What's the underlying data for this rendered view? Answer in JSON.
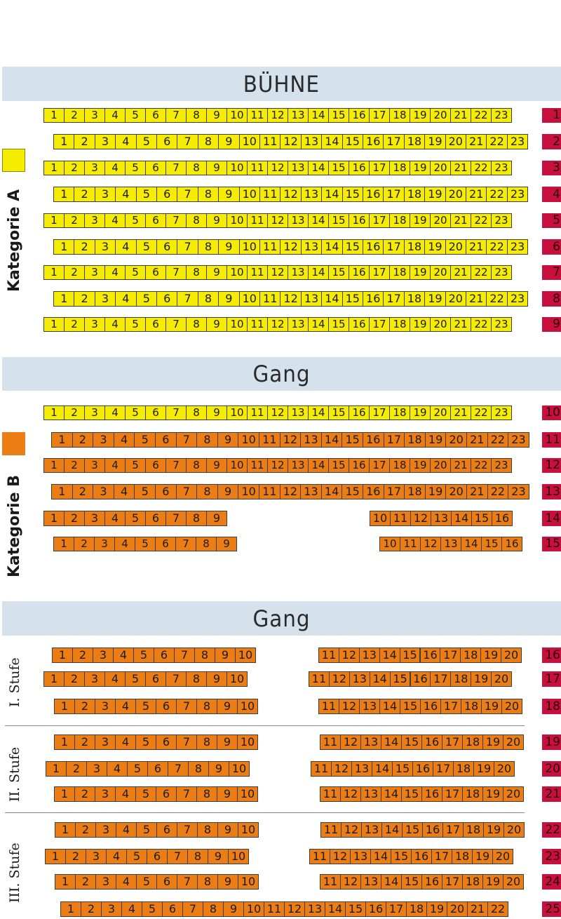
{
  "headings": {
    "stage": "BÜHNE",
    "aisle_1": "Gang",
    "aisle_2": "Gang"
  },
  "categories": {
    "a": {
      "label": "Kategorie A",
      "color": "#f6ec00"
    },
    "b": {
      "label": "Kategorie B",
      "color": "#ec7d14"
    }
  },
  "tiers": {
    "t1": "I. Stufe",
    "t2": "II. Stufe",
    "t3": "III. Stufe"
  },
  "colors": {
    "stage_band": "#d5e2ec",
    "row_label": "#c8103f"
  },
  "rows": [
    {
      "row": "1",
      "category": "A",
      "seats": [
        "1",
        "2",
        "3",
        "4",
        "5",
        "6",
        "7",
        "8",
        "9",
        "10",
        "11",
        "12",
        "13",
        "14",
        "15",
        "16",
        "17",
        "18",
        "19",
        "20",
        "21",
        "22",
        "23"
      ]
    },
    {
      "row": "2",
      "category": "A",
      "seats": [
        "1",
        "2",
        "3",
        "4",
        "5",
        "6",
        "7",
        "8",
        "9",
        "10",
        "11",
        "12",
        "13",
        "14",
        "15",
        "16",
        "17",
        "18",
        "19",
        "20",
        "21",
        "22",
        "23"
      ]
    },
    {
      "row": "3",
      "category": "A",
      "seats": [
        "1",
        "2",
        "3",
        "4",
        "5",
        "6",
        "7",
        "8",
        "9",
        "10",
        "11",
        "12",
        "13",
        "14",
        "15",
        "16",
        "17",
        "18",
        "19",
        "20",
        "21",
        "22",
        "23"
      ]
    },
    {
      "row": "4",
      "category": "A",
      "seats": [
        "1",
        "2",
        "3",
        "4",
        "5",
        "6",
        "7",
        "8",
        "9",
        "10",
        "11",
        "12",
        "13",
        "14",
        "15",
        "16",
        "17",
        "18",
        "19",
        "20",
        "21",
        "22",
        "23"
      ]
    },
    {
      "row": "5",
      "category": "A",
      "seats": [
        "1",
        "2",
        "3",
        "4",
        "5",
        "6",
        "7",
        "8",
        "9",
        "10",
        "11",
        "12",
        "13",
        "14",
        "15",
        "16",
        "17",
        "18",
        "19",
        "20",
        "21",
        "22",
        "23"
      ]
    },
    {
      "row": "6",
      "category": "A",
      "seats": [
        "1",
        "2",
        "3",
        "4",
        "5",
        "6",
        "7",
        "8",
        "9",
        "10",
        "11",
        "12",
        "13",
        "14",
        "15",
        "16",
        "17",
        "18",
        "19",
        "20",
        "21",
        "22",
        "23"
      ]
    },
    {
      "row": "7",
      "category": "A",
      "seats": [
        "1",
        "2",
        "3",
        "4",
        "5",
        "6",
        "7",
        "8",
        "9",
        "10",
        "11",
        "12",
        "13",
        "14",
        "15",
        "16",
        "17",
        "18",
        "19",
        "20",
        "21",
        "22",
        "23"
      ]
    },
    {
      "row": "8",
      "category": "A",
      "seats": [
        "1",
        "2",
        "3",
        "4",
        "5",
        "6",
        "7",
        "8",
        "9",
        "10",
        "11",
        "12",
        "13",
        "14",
        "15",
        "16",
        "17",
        "18",
        "19",
        "20",
        "21",
        "22",
        "23"
      ]
    },
    {
      "row": "9",
      "category": "A",
      "seats": [
        "1",
        "2",
        "3",
        "4",
        "5",
        "6",
        "7",
        "8",
        "9",
        "10",
        "11",
        "12",
        "13",
        "14",
        "15",
        "16",
        "17",
        "18",
        "19",
        "20",
        "21",
        "22",
        "23"
      ]
    },
    {
      "row": "10",
      "category": "A",
      "seats": [
        "1",
        "2",
        "3",
        "4",
        "5",
        "6",
        "7",
        "8",
        "9",
        "10",
        "11",
        "12",
        "13",
        "14",
        "15",
        "16",
        "17",
        "18",
        "19",
        "20",
        "21",
        "22",
        "23"
      ]
    },
    {
      "row": "11",
      "category": "B",
      "seats": [
        "1",
        "2",
        "3",
        "4",
        "5",
        "6",
        "7",
        "8",
        "9",
        "10",
        "11",
        "12",
        "13",
        "14",
        "15",
        "16",
        "17",
        "18",
        "19",
        "20",
        "21",
        "22",
        "23"
      ]
    },
    {
      "row": "12",
      "category": "B",
      "seats": [
        "1",
        "2",
        "3",
        "4",
        "5",
        "6",
        "7",
        "8",
        "9",
        "10",
        "11",
        "12",
        "13",
        "14",
        "15",
        "16",
        "17",
        "18",
        "19",
        "20",
        "21",
        "22",
        "23"
      ]
    },
    {
      "row": "13",
      "category": "B",
      "seats": [
        "1",
        "2",
        "3",
        "4",
        "5",
        "6",
        "7",
        "8",
        "9",
        "10",
        "11",
        "12",
        "13",
        "14",
        "15",
        "16",
        "17",
        "18",
        "19",
        "20",
        "21",
        "22",
        "23"
      ]
    },
    {
      "row": "14",
      "category": "B",
      "seats": [
        "1",
        "2",
        "3",
        "4",
        "5",
        "6",
        "7",
        "8",
        "9",
        "10",
        "11",
        "12",
        "13",
        "14",
        "15",
        "16"
      ]
    },
    {
      "row": "15",
      "category": "B",
      "seats": [
        "1",
        "2",
        "3",
        "4",
        "5",
        "6",
        "7",
        "8",
        "9",
        "10",
        "11",
        "12",
        "13",
        "14",
        "15",
        "16"
      ]
    },
    {
      "row": "16",
      "category": "B",
      "seats": [
        "1",
        "2",
        "3",
        "4",
        "5",
        "6",
        "7",
        "8",
        "9",
        "10",
        "11",
        "12",
        "13",
        "14",
        "15",
        "16",
        "17",
        "18",
        "19",
        "20"
      ]
    },
    {
      "row": "17",
      "category": "B",
      "seats": [
        "1",
        "2",
        "3",
        "4",
        "5",
        "6",
        "7",
        "8",
        "9",
        "10",
        "11",
        "12",
        "13",
        "14",
        "15",
        "16",
        "17",
        "18",
        "19",
        "20"
      ]
    },
    {
      "row": "18",
      "category": "B",
      "seats": [
        "1",
        "2",
        "3",
        "4",
        "5",
        "6",
        "7",
        "8",
        "9",
        "10",
        "11",
        "12",
        "13",
        "14",
        "15",
        "16",
        "17",
        "18",
        "19",
        "20"
      ]
    },
    {
      "row": "19",
      "category": "B",
      "seats": [
        "1",
        "2",
        "3",
        "4",
        "5",
        "6",
        "7",
        "8",
        "9",
        "10",
        "11",
        "12",
        "13",
        "14",
        "15",
        "16",
        "17",
        "18",
        "19",
        "20"
      ]
    },
    {
      "row": "20",
      "category": "B",
      "seats": [
        "1",
        "2",
        "3",
        "4",
        "5",
        "6",
        "7",
        "8",
        "9",
        "10",
        "11",
        "12",
        "13",
        "14",
        "15",
        "16",
        "17",
        "18",
        "19",
        "20"
      ]
    },
    {
      "row": "21",
      "category": "B",
      "seats": [
        "1",
        "2",
        "3",
        "4",
        "5",
        "6",
        "7",
        "8",
        "9",
        "10",
        "11",
        "12",
        "13",
        "14",
        "15",
        "16",
        "17",
        "18",
        "19",
        "20"
      ]
    },
    {
      "row": "22",
      "category": "B",
      "seats": [
        "1",
        "2",
        "3",
        "4",
        "5",
        "6",
        "7",
        "8",
        "9",
        "10",
        "11",
        "12",
        "13",
        "14",
        "15",
        "16",
        "17",
        "18",
        "19",
        "20"
      ]
    },
    {
      "row": "23",
      "category": "B",
      "seats": [
        "1",
        "2",
        "3",
        "4",
        "5",
        "6",
        "7",
        "8",
        "9",
        "10",
        "11",
        "12",
        "13",
        "14",
        "15",
        "16",
        "17",
        "18",
        "19",
        "20"
      ]
    },
    {
      "row": "24",
      "category": "B",
      "seats": [
        "1",
        "2",
        "3",
        "4",
        "5",
        "6",
        "7",
        "8",
        "9",
        "10",
        "11",
        "12",
        "13",
        "14",
        "15",
        "16",
        "17",
        "18",
        "19",
        "20"
      ]
    },
    {
      "row": "25",
      "category": "B",
      "seats": [
        "1",
        "2",
        "3",
        "4",
        "5",
        "6",
        "7",
        "8",
        "9",
        "10",
        "11",
        "12",
        "13",
        "14",
        "15",
        "16",
        "17",
        "18",
        "19",
        "20",
        "21",
        "22"
      ]
    }
  ]
}
